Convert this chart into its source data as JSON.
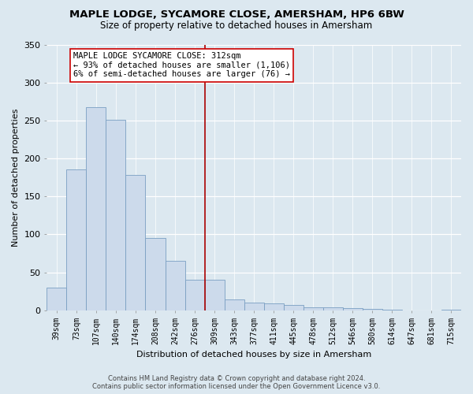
{
  "title": "MAPLE LODGE, SYCAMORE CLOSE, AMERSHAM, HP6 6BW",
  "subtitle": "Size of property relative to detached houses in Amersham",
  "xlabel": "Distribution of detached houses by size in Amersham",
  "ylabel": "Number of detached properties",
  "bin_labels": [
    "39sqm",
    "73sqm",
    "107sqm",
    "140sqm",
    "174sqm",
    "208sqm",
    "242sqm",
    "276sqm",
    "309sqm",
    "343sqm",
    "377sqm",
    "411sqm",
    "445sqm",
    "478sqm",
    "512sqm",
    "546sqm",
    "580sqm",
    "614sqm",
    "647sqm",
    "681sqm",
    "715sqm"
  ],
  "bar_values": [
    30,
    186,
    267,
    251,
    178,
    95,
    65,
    40,
    40,
    14,
    10,
    9,
    7,
    4,
    4,
    3,
    2,
    1,
    0,
    0,
    1
  ],
  "bar_color": "#ccdaeb",
  "bar_edge_color": "#7a9fc2",
  "vline_x_index": 8,
  "vline_color": "#aa0000",
  "annotation_box_text": "MAPLE LODGE SYCAMORE CLOSE: 312sqm\n← 93% of detached houses are smaller (1,106)\n6% of semi-detached houses are larger (76) →",
  "ylim": [
    0,
    350
  ],
  "yticks": [
    0,
    50,
    100,
    150,
    200,
    250,
    300,
    350
  ],
  "footer_line1": "Contains HM Land Registry data © Crown copyright and database right 2024.",
  "footer_line2": "Contains public sector information licensed under the Open Government Licence v3.0.",
  "bg_color": "#dce8f0",
  "plot_bg_color": "#dce8f0",
  "grid_color": "#ffffff",
  "title_fontsize": 9.5,
  "subtitle_fontsize": 8.5,
  "tick_fontsize": 7,
  "ylabel_fontsize": 8,
  "xlabel_fontsize": 8,
  "annot_fontsize": 7.5,
  "footer_fontsize": 6
}
